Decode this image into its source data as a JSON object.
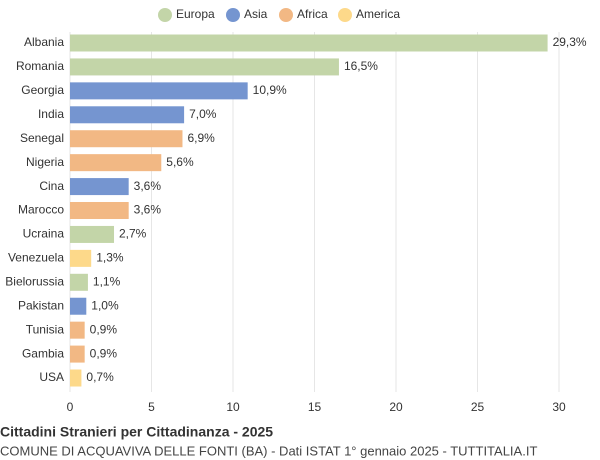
{
  "chart_data": {
    "type": "bar",
    "orientation": "horizontal",
    "title": "Cittadini Stranieri per Cittadinanza - 2025",
    "subtitle": "COMUNE DI ACQUAVIVA DELLE FONTI (BA) - Dati ISTAT 1° gennaio 2025 - TUTTITALIA.IT",
    "categories": [
      "Albania",
      "Romania",
      "Georgia",
      "India",
      "Senegal",
      "Nigeria",
      "Cina",
      "Marocco",
      "Ucraina",
      "Venezuela",
      "Bielorussia",
      "Pakistan",
      "Tunisia",
      "Gambia",
      "USA"
    ],
    "series": [
      {
        "name": "Europa",
        "color": "#c3d5a8",
        "values": [
          29.3,
          16.5,
          null,
          null,
          null,
          null,
          null,
          null,
          2.7,
          null,
          1.1,
          null,
          null,
          null,
          null
        ],
        "value_labels": [
          "29,3%",
          "16,5%",
          null,
          null,
          null,
          null,
          null,
          null,
          "2,7%",
          null,
          "1,1%",
          null,
          null,
          null,
          null
        ]
      },
      {
        "name": "Asia",
        "color": "#7595d0",
        "values": [
          null,
          null,
          10.9,
          7.0,
          null,
          null,
          3.6,
          null,
          null,
          null,
          null,
          1.0,
          null,
          null,
          null
        ],
        "value_labels": [
          null,
          null,
          "10,9%",
          "7,0%",
          null,
          null,
          "3,6%",
          null,
          null,
          null,
          null,
          "1,0%",
          null,
          null,
          null
        ]
      },
      {
        "name": "Africa",
        "color": "#f2b884",
        "values": [
          null,
          null,
          null,
          null,
          6.9,
          5.6,
          null,
          3.6,
          null,
          null,
          null,
          null,
          0.9,
          0.9,
          null
        ],
        "value_labels": [
          null,
          null,
          null,
          null,
          "6,9%",
          "5,6%",
          null,
          "3,6%",
          null,
          null,
          null,
          null,
          "0,9%",
          "0,9%",
          null
        ]
      },
      {
        "name": "America",
        "color": "#fdd98a",
        "values": [
          null,
          null,
          null,
          null,
          null,
          null,
          null,
          null,
          null,
          1.3,
          null,
          null,
          null,
          null,
          0.7
        ],
        "value_labels": [
          null,
          null,
          null,
          null,
          null,
          null,
          null,
          null,
          null,
          "1,3%",
          null,
          null,
          null,
          null,
          "0,7%"
        ]
      }
    ],
    "xlim": [
      0,
      30
    ],
    "xticks": [
      0,
      5,
      10,
      15,
      20,
      25,
      30
    ],
    "grid": true,
    "legend": "top"
  }
}
